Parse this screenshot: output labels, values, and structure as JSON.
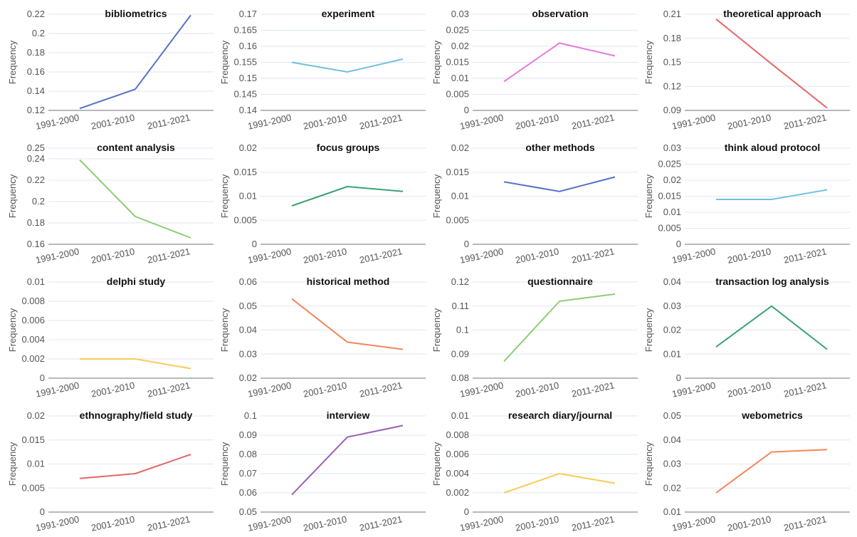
{
  "chart_data": [
    {
      "type": "line",
      "title": "bibliometrics",
      "ylabel": "Frequency",
      "categories": [
        "1991-2000",
        "2001-2010",
        "2011-2021"
      ],
      "series": [
        {
          "values": [
            0.122,
            0.142,
            0.219
          ]
        }
      ],
      "ylim": [
        0.12,
        0.22
      ],
      "yticks": [
        "0.12",
        "0.14",
        "0.16",
        "0.18",
        "0.2",
        "0.22"
      ],
      "color": "#5470c6"
    },
    {
      "type": "line",
      "title": "experiment",
      "ylabel": "Frequency",
      "categories": [
        "1991-2000",
        "2001-2010",
        "2011-2021"
      ],
      "series": [
        {
          "values": [
            0.155,
            0.152,
            0.156
          ]
        }
      ],
      "ylim": [
        0.14,
        0.17
      ],
      "yticks": [
        "0.14",
        "0.145",
        "0.15",
        "0.155",
        "0.16",
        "0.165",
        "0.17"
      ],
      "color": "#73c0de"
    },
    {
      "type": "line",
      "title": "observation",
      "ylabel": "Frequency",
      "categories": [
        "1991-2000",
        "2001-2010",
        "2011-2021"
      ],
      "series": [
        {
          "values": [
            0.009,
            0.021,
            0.017
          ]
        }
      ],
      "ylim": [
        0,
        0.03
      ],
      "yticks": [
        "0",
        "0.005",
        "0.01",
        "0.015",
        "0.02",
        "0.025",
        "0.03"
      ],
      "color": "#e77ddb"
    },
    {
      "type": "line",
      "title": "theoretical approach",
      "ylabel": "Frequency",
      "categories": [
        "1991-2000",
        "2001-2010",
        "2011-2021"
      ],
      "series": [
        {
          "values": [
            0.204,
            0.148,
            0.093
          ]
        }
      ],
      "ylim": [
        0.09,
        0.21
      ],
      "yticks": [
        "0.09",
        "0.12",
        "0.15",
        "0.18",
        "0.21"
      ],
      "color": "#e56666"
    },
    {
      "type": "line",
      "title": "content analysis",
      "ylabel": "Frequency",
      "categories": [
        "1991-2000",
        "2001-2010",
        "2011-2021"
      ],
      "series": [
        {
          "values": [
            0.239,
            0.186,
            0.166
          ]
        }
      ],
      "ylim": [
        0.16,
        0.25
      ],
      "yticks": [
        "0.16",
        "0.18",
        "0.2",
        "0.22",
        "0.24",
        "0.25"
      ],
      "color": "#91cc75"
    },
    {
      "type": "line",
      "title": "focus groups",
      "ylabel": "Frequency",
      "categories": [
        "1991-2000",
        "2001-2010",
        "2011-2021"
      ],
      "series": [
        {
          "values": [
            0.008,
            0.012,
            0.011
          ]
        }
      ],
      "ylim": [
        0,
        0.02
      ],
      "yticks": [
        "0",
        "0.005",
        "0.01",
        "0.015",
        "0.02"
      ],
      "color": "#3ba272"
    },
    {
      "type": "line",
      "title": "other methods",
      "ylabel": "Frequency",
      "categories": [
        "1991-2000",
        "2001-2010",
        "2011-2021"
      ],
      "series": [
        {
          "values": [
            0.013,
            0.011,
            0.014
          ]
        }
      ],
      "ylim": [
        0,
        0.02
      ],
      "yticks": [
        "0",
        "0.005",
        "0.01",
        "0.015",
        "0.02"
      ],
      "color": "#5470c6"
    },
    {
      "type": "line",
      "title": "think aloud protocol",
      "ylabel": "Frequency",
      "categories": [
        "1991-2000",
        "2001-2010",
        "2011-2021"
      ],
      "series": [
        {
          "values": [
            0.014,
            0.014,
            0.017
          ]
        }
      ],
      "ylim": [
        0,
        0.03
      ],
      "yticks": [
        "0",
        "0.005",
        "0.01",
        "0.015",
        "0.02",
        "0.025",
        "0.03"
      ],
      "color": "#73c0de"
    },
    {
      "type": "line",
      "title": "delphi study",
      "ylabel": "Frequency",
      "categories": [
        "1991-2000",
        "2001-2010",
        "2011-2021"
      ],
      "series": [
        {
          "values": [
            0.002,
            0.002,
            0.001
          ]
        }
      ],
      "ylim": [
        0,
        0.01
      ],
      "yticks": [
        "0",
        "0.002",
        "0.004",
        "0.006",
        "0.008",
        "0.01"
      ],
      "color": "#f8cc5a"
    },
    {
      "type": "line",
      "title": "historical method",
      "ylabel": "Frequency",
      "categories": [
        "1991-2000",
        "2001-2010",
        "2011-2021"
      ],
      "series": [
        {
          "values": [
            0.053,
            0.035,
            0.032
          ]
        }
      ],
      "ylim": [
        0.02,
        0.06
      ],
      "yticks": [
        "0.02",
        "0.03",
        "0.04",
        "0.05",
        "0.06"
      ],
      "color": "#f2875a"
    },
    {
      "type": "line",
      "title": "questionnaire",
      "ylabel": "Frequency",
      "categories": [
        "1991-2000",
        "2001-2010",
        "2011-2021"
      ],
      "series": [
        {
          "values": [
            0.087,
            0.112,
            0.115
          ]
        }
      ],
      "ylim": [
        0.08,
        0.12
      ],
      "yticks": [
        "0.08",
        "0.09",
        "0.1",
        "0.11",
        "0.12"
      ],
      "color": "#91cc75"
    },
    {
      "type": "line",
      "title": "transaction log analysis",
      "ylabel": "Frequency",
      "categories": [
        "1991-2000",
        "2001-2010",
        "2011-2021"
      ],
      "series": [
        {
          "values": [
            0.013,
            0.03,
            0.012
          ]
        }
      ],
      "ylim": [
        0,
        0.04
      ],
      "yticks": [
        "0",
        "0.01",
        "0.02",
        "0.03",
        "0.04"
      ],
      "color": "#3ba272"
    },
    {
      "type": "line",
      "title": "ethnography/field study",
      "ylabel": "Frequency",
      "categories": [
        "1991-2000",
        "2001-2010",
        "2011-2021"
      ],
      "series": [
        {
          "values": [
            0.007,
            0.008,
            0.012
          ]
        }
      ],
      "ylim": [
        0,
        0.02
      ],
      "yticks": [
        "0",
        "0.005",
        "0.01",
        "0.015",
        "0.02"
      ],
      "color": "#e56666"
    },
    {
      "type": "line",
      "title": "interview",
      "ylabel": "Frequency",
      "categories": [
        "1991-2000",
        "2001-2010",
        "2011-2021"
      ],
      "series": [
        {
          "values": [
            0.059,
            0.089,
            0.095
          ]
        }
      ],
      "ylim": [
        0.05,
        0.1
      ],
      "yticks": [
        "0.05",
        "0.06",
        "0.07",
        "0.08",
        "0.09",
        "0.1"
      ],
      "color": "#9a60b4"
    },
    {
      "type": "line",
      "title": "research diary/journal",
      "ylabel": "Frequency",
      "categories": [
        "1991-2000",
        "2001-2010",
        "2011-2021"
      ],
      "series": [
        {
          "values": [
            0.002,
            0.004,
            0.003
          ]
        }
      ],
      "ylim": [
        0,
        0.01
      ],
      "yticks": [
        "0",
        "0.002",
        "0.004",
        "0.006",
        "0.008",
        "0.01"
      ],
      "color": "#f8cc5a"
    },
    {
      "type": "line",
      "title": "webometrics",
      "ylabel": "Frequency",
      "categories": [
        "1991-2000",
        "2001-2010",
        "2011-2021"
      ],
      "series": [
        {
          "values": [
            0.018,
            0.035,
            0.036
          ]
        }
      ],
      "ylim": [
        0.01,
        0.05
      ],
      "yticks": [
        "0.01",
        "0.02",
        "0.03",
        "0.04",
        "0.05"
      ],
      "color": "#f2875a"
    }
  ]
}
